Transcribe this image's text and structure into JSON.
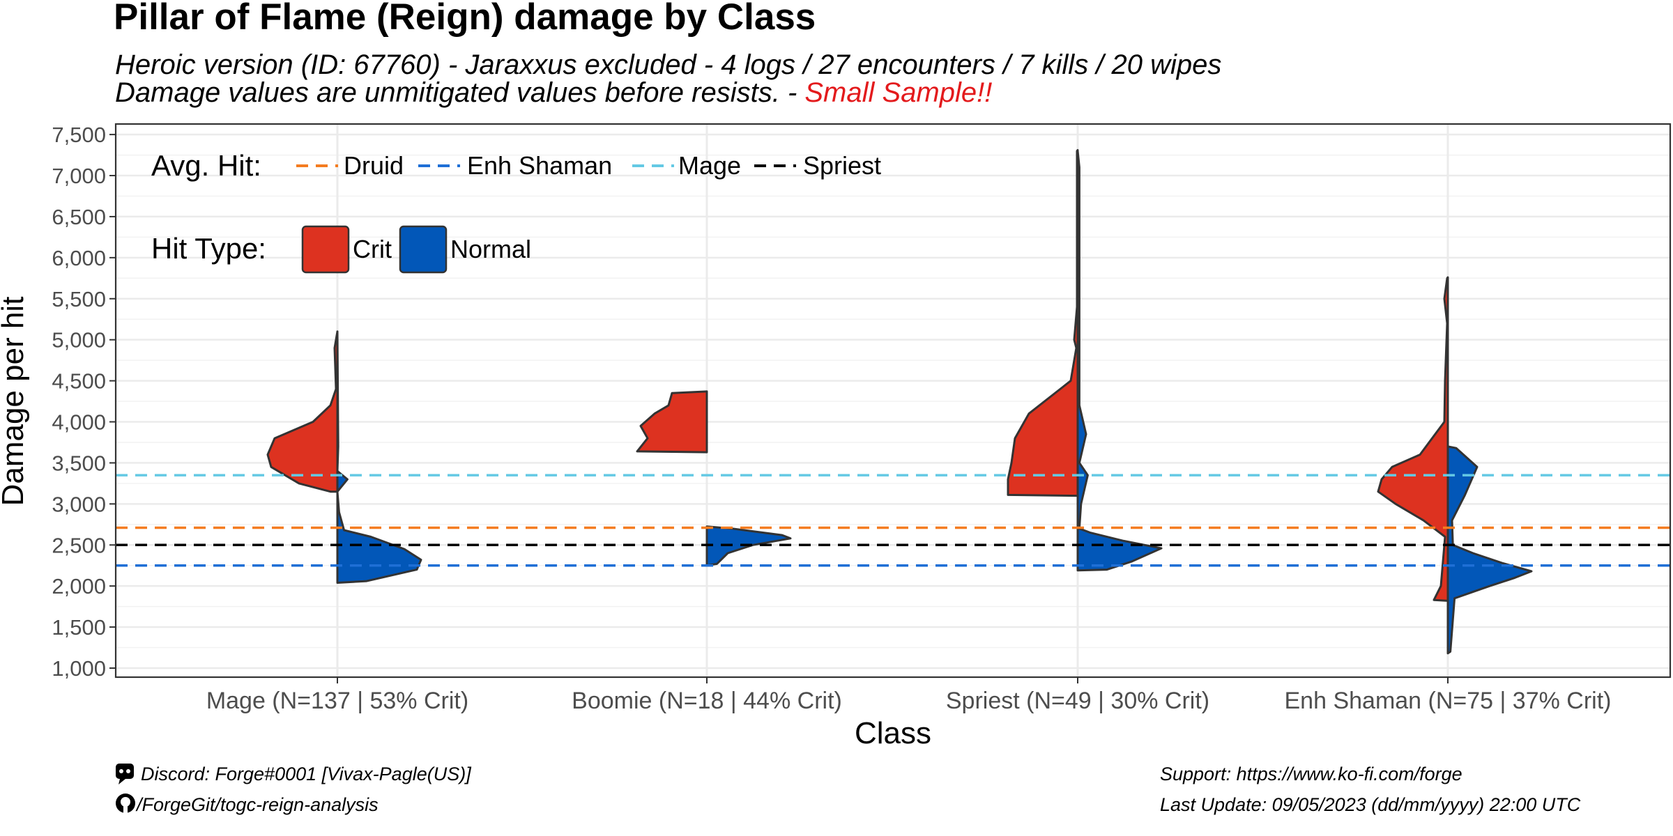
{
  "title": "Pillar of Flame (Reign) damage by Class",
  "subtitle": {
    "line1": "Heroic version (ID: 67760) - Jaraxxus excluded - 4 logs  / 27 encounters  / 7  kills  / 20 wipes",
    "line2_prefix": "Damage values are unmitigated values before resists. - ",
    "line2_warning": "Small Sample!!"
  },
  "colors": {
    "crit": "#dd3220",
    "normal": "#0257b8",
    "druid": "#f47c20",
    "enh_shaman": "#1f6fd6",
    "mage": "#64c9e4",
    "spriest": "#000000",
    "outline": "#333333",
    "warning": "#e31a1c"
  },
  "legend": {
    "avg_hit_title": "Avg. Hit:",
    "hit_type_title": "Hit Type:",
    "crit_label": "Crit",
    "normal_label": "Normal"
  },
  "footer": {
    "discord": "Discord: Forge#0001 [Vivax-Pagle(US)]",
    "github": "/ForgeGit/togc-reign-analysis",
    "support": "Support: https://www.ko-fi.com/forge",
    "last_update": "Last Update: 09/05/2023 (dd/mm/yyyy)  22:00 UTC"
  },
  "chart_data": {
    "type": "violin",
    "title": "Pillar of Flame (Reign) damage by Class",
    "xlabel": "Class",
    "ylabel": "Damage per hit",
    "ylim": [
      950,
      7600
    ],
    "yticks": [
      1000,
      1500,
      2000,
      2500,
      3000,
      3500,
      4000,
      4500,
      5000,
      5500,
      6000,
      6500,
      7000,
      7500
    ],
    "ytick_labels": [
      "1,000",
      "1,500",
      "2,000",
      "2,500",
      "3,000",
      "3,500",
      "4,000",
      "4,500",
      "5,000",
      "5,500",
      "6,000",
      "6,500",
      "7,000",
      "7,500"
    ],
    "grid": true,
    "categories": [
      "Mage (N=137 | 53% Crit)",
      "Boomie (N=18 | 44% Crit)",
      "Spriest (N=49 | 30% Crit)",
      "Enh Shaman (N=75 | 37% Crit)"
    ],
    "avg_hit_lines": [
      {
        "name": "Druid",
        "value": 2710,
        "color_key": "druid"
      },
      {
        "name": "Enh Shaman",
        "value": 2250,
        "color_key": "enh_shaman"
      },
      {
        "name": "Mage",
        "value": 3350,
        "color_key": "mage"
      },
      {
        "name": "Spriest",
        "value": 2500,
        "color_key": "spriest"
      }
    ],
    "violins": [
      {
        "category": "Mage (N=137 | 53% Crit)",
        "crit": [
          [
            3150,
            0.1
          ],
          [
            3250,
            0.55
          ],
          [
            3450,
            0.95
          ],
          [
            3600,
            1.0
          ],
          [
            3800,
            0.9
          ],
          [
            4000,
            0.35
          ],
          [
            4200,
            0.1
          ],
          [
            4400,
            0.02
          ],
          [
            4900,
            0.04
          ],
          [
            5100,
            0.0
          ]
        ],
        "normal": [
          [
            2040,
            0.0
          ],
          [
            2060,
            0.35
          ],
          [
            2200,
            0.95
          ],
          [
            2320,
            1.0
          ],
          [
            2450,
            0.8
          ],
          [
            2600,
            0.4
          ],
          [
            2680,
            0.08
          ],
          [
            2900,
            0.02
          ],
          [
            3150,
            0.0
          ],
          [
            3300,
            0.12
          ],
          [
            3400,
            0.0
          ],
          [
            3700,
            0.01
          ],
          [
            5100,
            0.0
          ]
        ]
      },
      {
        "category": "Boomie (N=18 | 44% Crit)",
        "crit": [
          [
            3630,
            0.0
          ],
          [
            3640,
            1.0
          ],
          [
            3800,
            0.85
          ],
          [
            3950,
            0.95
          ],
          [
            4100,
            0.75
          ],
          [
            4200,
            0.55
          ],
          [
            4350,
            0.5
          ],
          [
            4370,
            0.0
          ]
        ],
        "normal": [
          [
            2250,
            0.0
          ],
          [
            2270,
            0.12
          ],
          [
            2400,
            0.25
          ],
          [
            2500,
            0.55
          ],
          [
            2580,
            1.0
          ],
          [
            2620,
            0.9
          ],
          [
            2700,
            0.3
          ],
          [
            2725,
            0.0
          ]
        ]
      },
      {
        "category": "Spriest (N=49 | 30% Crit)",
        "crit": [
          [
            3100,
            0.0
          ],
          [
            3110,
            1.0
          ],
          [
            3300,
            1.0
          ],
          [
            3500,
            0.95
          ],
          [
            3800,
            0.9
          ],
          [
            4100,
            0.7
          ],
          [
            4500,
            0.1
          ],
          [
            4900,
            0.02
          ],
          [
            5000,
            0.05
          ],
          [
            5400,
            0.01
          ],
          [
            7000,
            0.01
          ],
          [
            7300,
            0.01
          ],
          [
            7310,
            0.0
          ]
        ],
        "normal": [
          [
            2190,
            0.0
          ],
          [
            2200,
            0.35
          ],
          [
            2300,
            0.65
          ],
          [
            2460,
            1.0
          ],
          [
            2550,
            0.55
          ],
          [
            2650,
            0.15
          ],
          [
            2700,
            0.02
          ],
          [
            3000,
            0.04
          ],
          [
            3350,
            0.12
          ],
          [
            3500,
            0.02
          ],
          [
            3850,
            0.1
          ],
          [
            4200,
            0.02
          ],
          [
            7100,
            0.02
          ],
          [
            7300,
            0.0
          ]
        ]
      },
      {
        "category": "Enh Shaman (N=75 | 37% Crit)",
        "crit": [
          [
            1820,
            0.0
          ],
          [
            1830,
            0.2
          ],
          [
            2000,
            0.1
          ],
          [
            2600,
            0.04
          ],
          [
            2800,
            0.35
          ],
          [
            3000,
            0.75
          ],
          [
            3150,
            1.0
          ],
          [
            3300,
            0.95
          ],
          [
            3450,
            0.8
          ],
          [
            3600,
            0.4
          ],
          [
            4000,
            0.05
          ],
          [
            4500,
            0.04
          ],
          [
            5200,
            0.01
          ],
          [
            5500,
            0.05
          ],
          [
            5750,
            0.01
          ],
          [
            5760,
            0.0
          ]
        ],
        "normal": [
          [
            1180,
            0.0
          ],
          [
            1200,
            0.03
          ],
          [
            1850,
            0.08
          ],
          [
            2000,
            0.5
          ],
          [
            2100,
            0.8
          ],
          [
            2180,
            1.0
          ],
          [
            2280,
            0.65
          ],
          [
            2400,
            0.3
          ],
          [
            2500,
            0.06
          ],
          [
            2800,
            0.05
          ],
          [
            3100,
            0.2
          ],
          [
            3450,
            0.35
          ],
          [
            3680,
            0.1
          ],
          [
            3700,
            0.0
          ]
        ]
      }
    ]
  }
}
